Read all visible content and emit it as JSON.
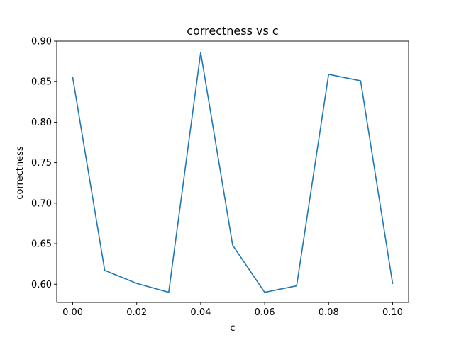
{
  "chart_data": {
    "type": "line",
    "title": "correctness vs c",
    "xlabel": "c",
    "ylabel": "correctness",
    "xlim": [
      -0.005,
      0.105
    ],
    "ylim": [
      0.5775,
      0.9
    ],
    "xticks": [
      0.0,
      0.02,
      0.04,
      0.06,
      0.08,
      0.1
    ],
    "xtick_labels": [
      "0.00",
      "0.02",
      "0.04",
      "0.06",
      "0.08",
      "0.10"
    ],
    "yticks": [
      0.6,
      0.65,
      0.7,
      0.75,
      0.8,
      0.85,
      0.9
    ],
    "ytick_labels": [
      "0.60",
      "0.65",
      "0.70",
      "0.75",
      "0.80",
      "0.85",
      "0.90"
    ],
    "grid": false,
    "series": [
      {
        "color": "#1f77b4",
        "x": [
          0.0,
          0.01,
          0.02,
          0.03,
          0.04,
          0.05,
          0.06,
          0.07,
          0.08,
          0.09,
          0.1
        ],
        "y": [
          0.855,
          0.617,
          0.601,
          0.59,
          0.886,
          0.648,
          0.59,
          0.598,
          0.859,
          0.851,
          0.601
        ]
      }
    ]
  }
}
